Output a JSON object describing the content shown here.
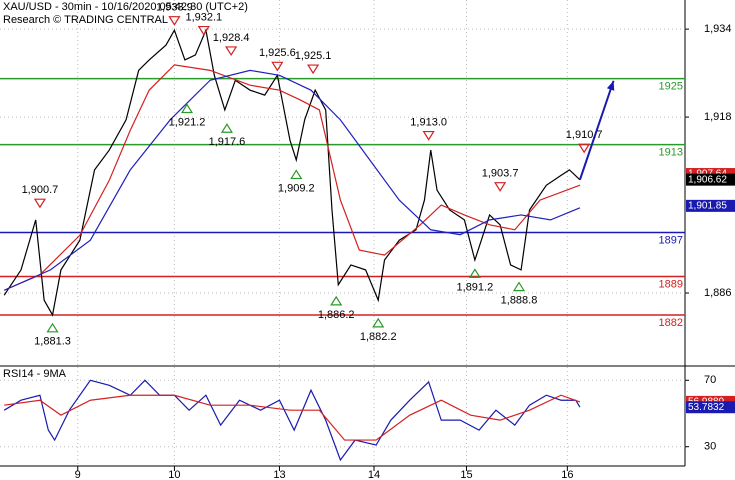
{
  "chart_data": [
    {
      "type": "line",
      "title": "XAU/USD - 30min - 10/16/2020 05:42:30 (UTC+2)",
      "subtitle": "Research © TRADING CENTRAL",
      "xlim": [
        0,
        326
      ],
      "ylim": [
        1872.9,
        1939.3
      ],
      "xticks": [
        {
          "value": 37,
          "label": "9"
        },
        {
          "value": 83,
          "label": "10"
        },
        {
          "value": 133,
          "label": "13"
        },
        {
          "value": 178,
          "label": "14"
        },
        {
          "value": 222,
          "label": "15"
        },
        {
          "value": 270,
          "label": "16"
        }
      ],
      "yticks": [
        {
          "value": 1934,
          "label": "1,934"
        },
        {
          "value": 1918,
          "label": "1,918"
        },
        {
          "value": 1886,
          "label": "1,886"
        }
      ],
      "grid": true,
      "series": [
        {
          "color": "#000000",
          "x": [
            2,
            10,
            17,
            21,
            25,
            29,
            38,
            45,
            52,
            60,
            66,
            71,
            79,
            83,
            88,
            93,
            98,
            102,
            107,
            112,
            119,
            126,
            132,
            138,
            141,
            145,
            150,
            155,
            158,
            161,
            167,
            174,
            180,
            183,
            190,
            198,
            202,
            205,
            208,
            214,
            221,
            226,
            233,
            238,
            243,
            248,
            252,
            260,
            267,
            271,
            276
          ],
          "values": [
            1885.6,
            1890.2,
            1899.3,
            1884.7,
            1882,
            1890.2,
            1895.6,
            1908.4,
            1912,
            1917.5,
            1926.5,
            1928.4,
            1931.1,
            1933.8,
            1928.4,
            1929.3,
            1933.8,
            1925.6,
            1919.3,
            1924.7,
            1922.9,
            1922,
            1925.6,
            1913.8,
            1910.2,
            1917.5,
            1922.9,
            1919.3,
            1901.1,
            1887.5,
            1891.1,
            1890.2,
            1884.7,
            1892,
            1895.6,
            1897.5,
            1902.9,
            1912,
            1904.7,
            1901.1,
            1899.3,
            1892,
            1900.2,
            1898.4,
            1891.1,
            1890.2,
            1901.1,
            1905.6,
            1907.4,
            1908.4,
            1906.6
          ]
        },
        {
          "color": "#d42020",
          "x": [
            2,
            19,
            38,
            52,
            62,
            71,
            83,
            100,
            119,
            133,
            143,
            152,
            162,
            171,
            183,
            200,
            210,
            221,
            233,
            245,
            257,
            276
          ],
          "values": [
            1886.5,
            1889.3,
            1896.5,
            1906.5,
            1915.6,
            1922.9,
            1927.5,
            1926.5,
            1923.8,
            1922.9,
            1921.1,
            1919.3,
            1902.9,
            1893.8,
            1892.9,
            1898.4,
            1902,
            1900.2,
            1898.4,
            1897.5,
            1902.9,
            1905.6
          ]
        },
        {
          "color": "#2020c0",
          "x": [
            2,
            24,
            43,
            62,
            81,
            100,
            119,
            133,
            148,
            162,
            176,
            190,
            205,
            219,
            233,
            248,
            262,
            276
          ],
          "values": [
            1886.5,
            1890.2,
            1895.6,
            1908.4,
            1917.5,
            1924.7,
            1926.5,
            1925.6,
            1922.9,
            1917.5,
            1910.2,
            1902.9,
            1897.5,
            1896.6,
            1899.3,
            1900.2,
            1899.3,
            1901.5
          ]
        }
      ],
      "levels": [
        {
          "value": 1925,
          "color": "#2a9a2a"
        },
        {
          "value": 1913,
          "color": "#2a9a2a"
        },
        {
          "value": 1897,
          "color": "#1a1ab0"
        },
        {
          "value": 1889,
          "color": "#d42020"
        },
        {
          "value": 1882,
          "color": "#d42020"
        }
      ],
      "forecast": {
        "color": "#1a1ab0",
        "x": [
          276,
          292
        ],
        "values": [
          1906.6,
          1924.6
        ]
      },
      "annotations": [
        {
          "x": 19,
          "value": 1900.7,
          "label": "1,900.7",
          "kind": "high"
        },
        {
          "x": 25,
          "value": 1881.3,
          "label": "1,881.3",
          "kind": "low"
        },
        {
          "x": 83,
          "value": 1933.9,
          "label": "1,933.9",
          "kind": "high"
        },
        {
          "x": 97,
          "value": 1932.1,
          "label": "1,932.1",
          "kind": "high"
        },
        {
          "x": 110,
          "value": 1928.4,
          "label": "1,928.4",
          "kind": "high"
        },
        {
          "x": 89,
          "value": 1921.2,
          "label": "1,921.2",
          "kind": "low"
        },
        {
          "x": 108,
          "value": 1917.6,
          "label": "1,917.6",
          "kind": "low"
        },
        {
          "x": 132,
          "value": 1925.6,
          "label": "1,925.6",
          "kind": "high"
        },
        {
          "x": 149,
          "value": 1925.1,
          "label": "1,925.1",
          "kind": "high"
        },
        {
          "x": 141,
          "value": 1909.2,
          "label": "1,909.2",
          "kind": "low"
        },
        {
          "x": 204,
          "value": 1913.0,
          "label": "1,913.0",
          "kind": "high"
        },
        {
          "x": 160,
          "value": 1886.2,
          "label": "1,886.2",
          "kind": "low"
        },
        {
          "x": 180,
          "value": 1882.2,
          "label": "1,882.2",
          "kind": "low"
        },
        {
          "x": 238,
          "value": 1903.7,
          "label": "1,903.7",
          "kind": "high"
        },
        {
          "x": 226,
          "value": 1891.2,
          "label": "1,891.2",
          "kind": "low"
        },
        {
          "x": 247,
          "value": 1888.8,
          "label": "1,888.8",
          "kind": "low"
        },
        {
          "x": 278,
          "value": 1910.7,
          "label": "1,910.7",
          "kind": "high"
        }
      ],
      "last_values": {
        "values": [
          1907.64,
          1906.62,
          1901.85
        ],
        "value_labels": [
          "1,907.64",
          "1,906.62",
          "1,901.85"
        ],
        "colors": [
          "#d42020",
          "#000000",
          "#1a1ab0"
        ]
      }
    },
    {
      "type": "line",
      "title": "RSI14 - 9MA",
      "xlim": [
        0,
        326
      ],
      "ylim": [
        19,
        78
      ],
      "yticks": [
        30,
        70
      ],
      "grid": true,
      "series": [
        {
          "color": "#1a1ab0",
          "x": [
            2,
            10,
            19,
            23,
            26,
            33,
            43,
            52,
            62,
            69,
            76,
            83,
            90,
            98,
            105,
            114,
            124,
            133,
            140,
            148,
            155,
            162,
            169,
            179,
            186,
            195,
            204,
            210,
            219,
            228,
            236,
            245,
            252,
            260,
            267,
            274,
            276
          ],
          "values": [
            52,
            58,
            61,
            40,
            34,
            52,
            70,
            67,
            61,
            70,
            61,
            61,
            52,
            61,
            43,
            58,
            52,
            58,
            40,
            64,
            46,
            22,
            34,
            31,
            46,
            58,
            69,
            46,
            46,
            40,
            52,
            43,
            55,
            61,
            58,
            58,
            53.8
          ]
        },
        {
          "color": "#d42020",
          "x": [
            2,
            19,
            29,
            43,
            62,
            83,
            100,
            119,
            138,
            152,
            164,
            179,
            195,
            210,
            224,
            238,
            252,
            267,
            276
          ],
          "values": [
            55,
            58,
            49,
            58,
            61,
            61,
            55,
            55,
            52,
            52,
            34,
            34,
            49,
            58,
            49,
            46,
            52,
            61,
            57
          ]
        }
      ],
      "last_values": {
        "values": [
          56.9889,
          53.7832
        ],
        "colors": [
          "#d42020",
          "#1a1ab0"
        ]
      }
    }
  ]
}
